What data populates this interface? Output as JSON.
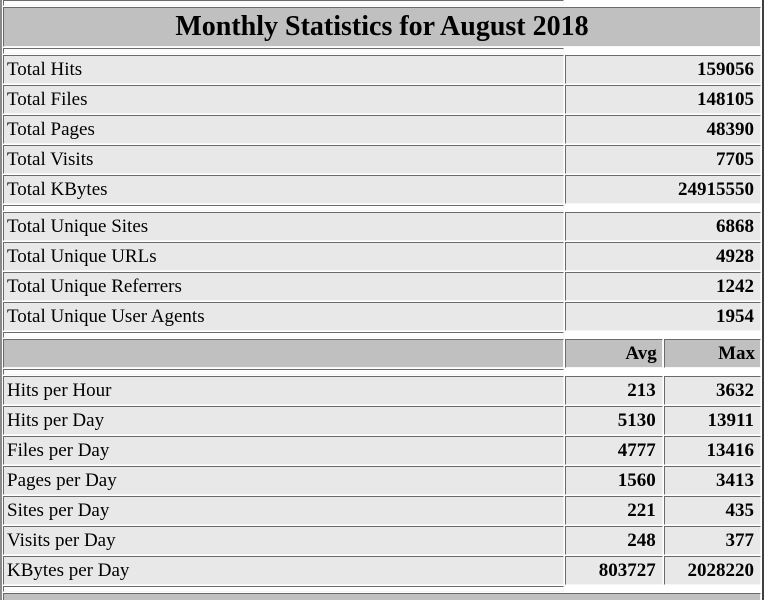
{
  "title": "Monthly Statistics for August 2018",
  "colors": {
    "header_bg": "#C0C0C0",
    "row_bg": "#E8E8E8"
  },
  "totals": [
    {
      "label": "Total Hits",
      "value": "159056"
    },
    {
      "label": "Total Files",
      "value": "148105"
    },
    {
      "label": "Total Pages",
      "value": "48390"
    },
    {
      "label": "Total Visits",
      "value": "7705"
    },
    {
      "label": "Total KBytes",
      "value": "24915550"
    }
  ],
  "uniques": [
    {
      "label": "Total Unique Sites",
      "value": "6868"
    },
    {
      "label": "Total Unique URLs",
      "value": "4928"
    },
    {
      "label": "Total Unique Referrers",
      "value": "1242"
    },
    {
      "label": "Total Unique User Agents",
      "value": "1954"
    }
  ],
  "rates": {
    "headers": {
      "avg": "Avg",
      "max": "Max"
    },
    "rows": [
      {
        "label": "Hits per Hour",
        "avg": "213",
        "max": "3632"
      },
      {
        "label": "Hits per Day",
        "avg": "5130",
        "max": "13911"
      },
      {
        "label": "Files per Day",
        "avg": "4777",
        "max": "13416"
      },
      {
        "label": "Pages per Day",
        "avg": "1560",
        "max": "3413"
      },
      {
        "label": "Sites per Day",
        "avg": "221",
        "max": "435"
      },
      {
        "label": "Visits per Day",
        "avg": "248",
        "max": "377"
      },
      {
        "label": "KBytes per Day",
        "avg": "803727",
        "max": "2028220"
      }
    ]
  }
}
